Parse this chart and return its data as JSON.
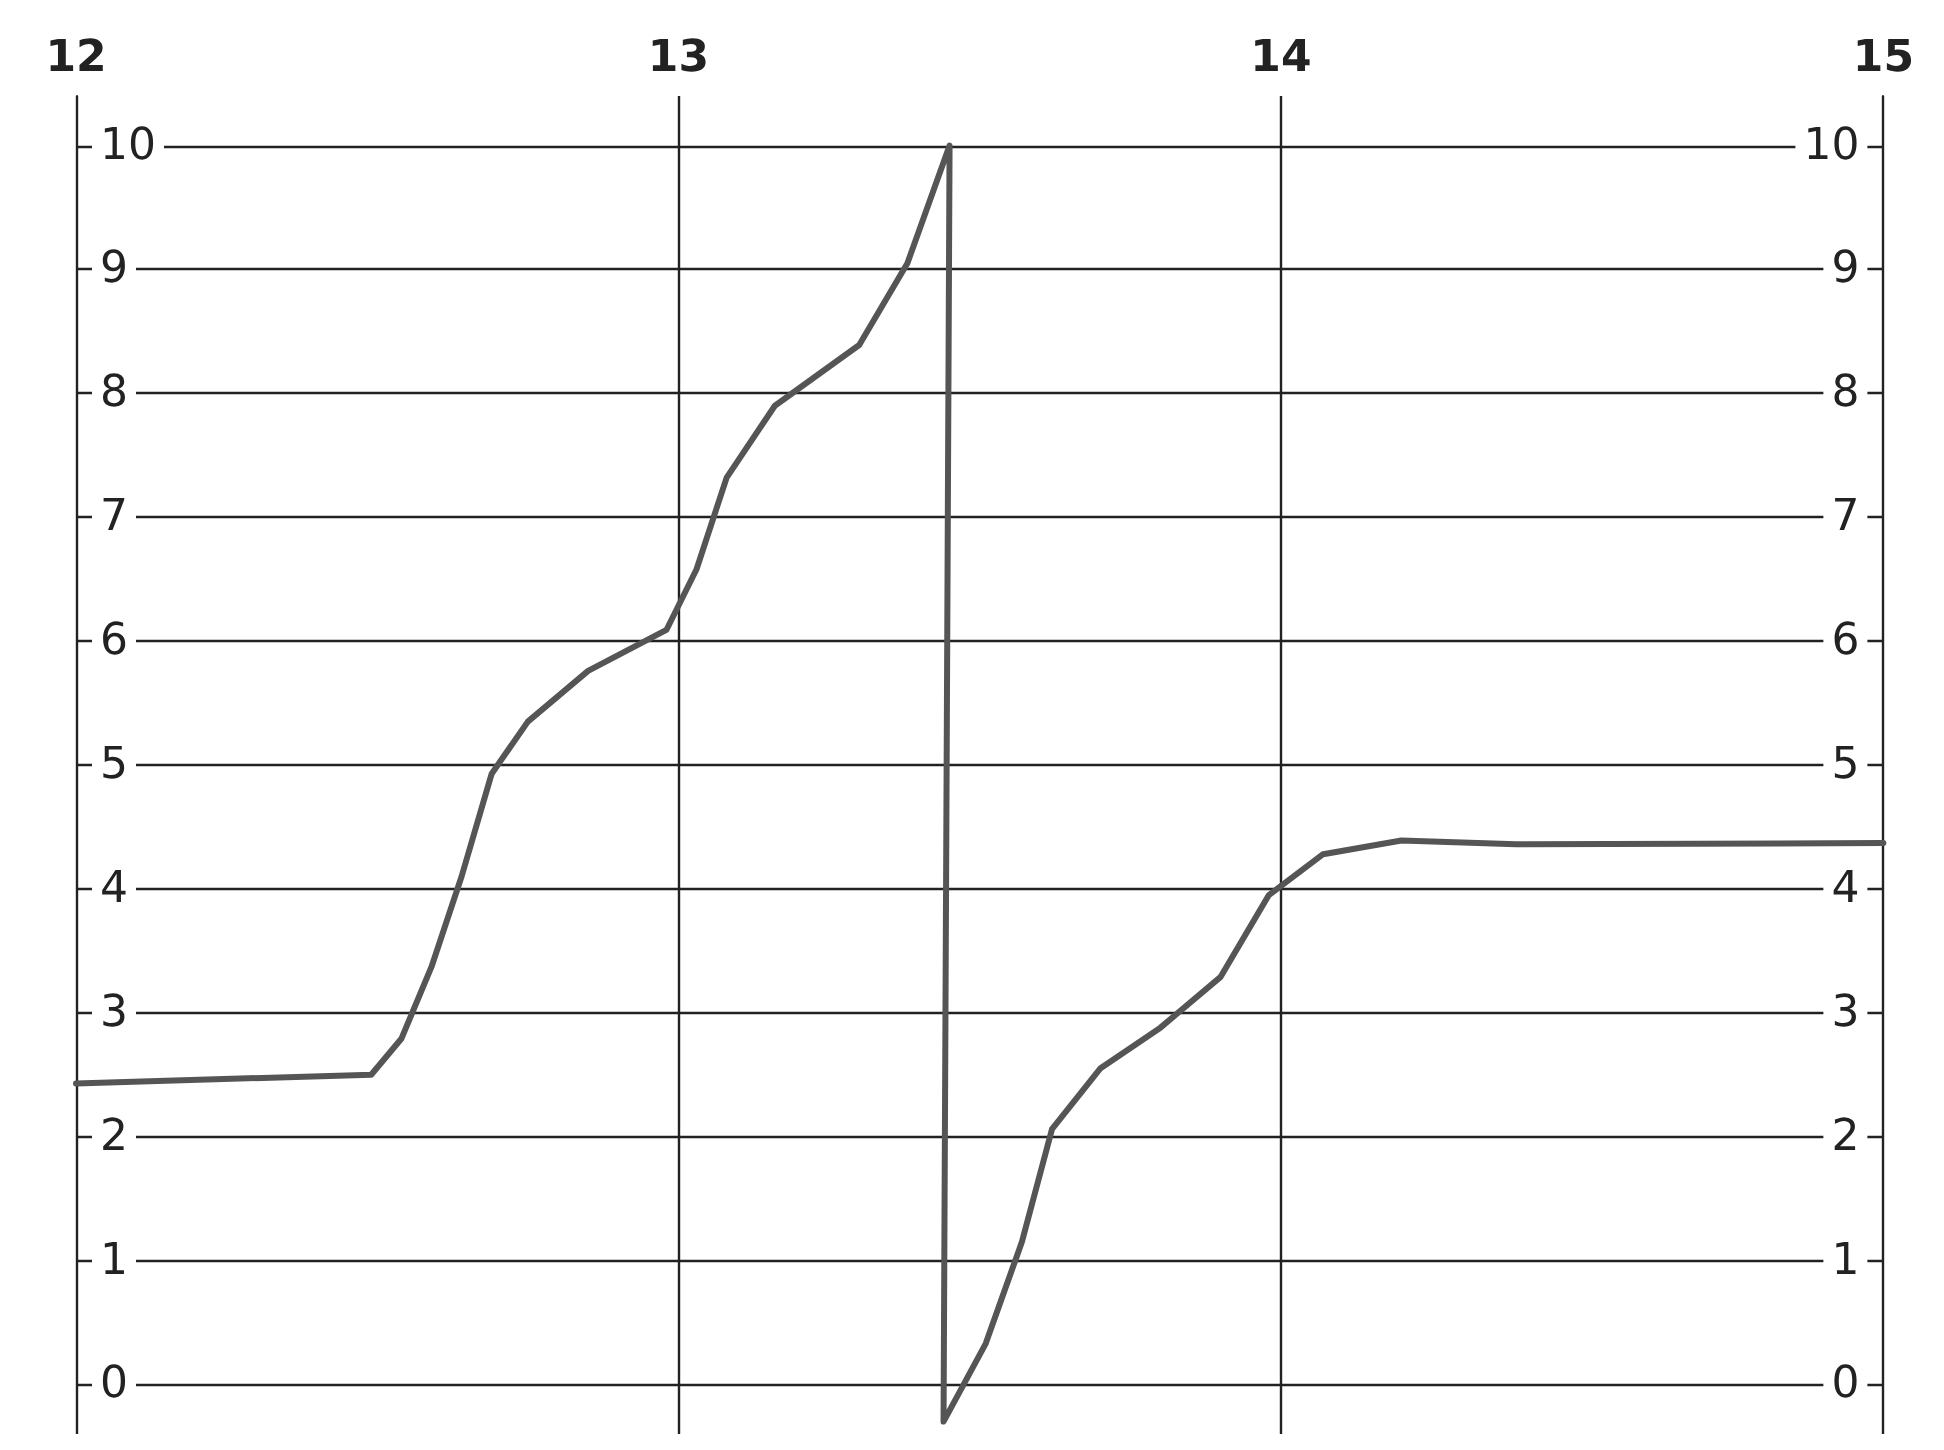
{
  "chart_data": {
    "type": "line",
    "xlim": [
      12,
      15
    ],
    "xticks": [
      12,
      13,
      14,
      15
    ],
    "ylim": [
      -0.4,
      10.4
    ],
    "yticks": [
      0,
      1,
      2,
      3,
      4,
      5,
      6,
      7,
      8,
      9,
      10
    ],
    "y2lim": [
      -0.4,
      10.4
    ],
    "y2ticks": [
      0,
      1,
      2,
      3,
      4,
      5,
      6,
      7,
      8,
      9,
      10
    ],
    "grid": true,
    "marker": "none",
    "line_style": "solid",
    "series": [
      {
        "color": "#555555",
        "x": [
          12,
          12.49,
          12.54,
          12.59,
          12.64,
          12.69,
          12.75,
          12.85,
          12.98,
          13.03,
          13.08,
          13.16,
          13.3,
          13.38,
          13.45,
          13.44,
          13.51,
          13.57,
          13.62,
          13.7,
          13.8,
          13.9,
          13.98,
          14.07,
          14.2,
          14.39,
          15
        ],
        "values": [
          2.43,
          2.5,
          2.79,
          3.37,
          4.1,
          4.93,
          5.35,
          5.76,
          6.09,
          6.58,
          7.32,
          7.9,
          8.39,
          9.05,
          10,
          -0.3,
          0.33,
          1.15,
          2.06,
          2.55,
          2.88,
          3.29,
          3.95,
          4.28,
          4.39,
          4.36,
          4.37
        ]
      }
    ]
  }
}
